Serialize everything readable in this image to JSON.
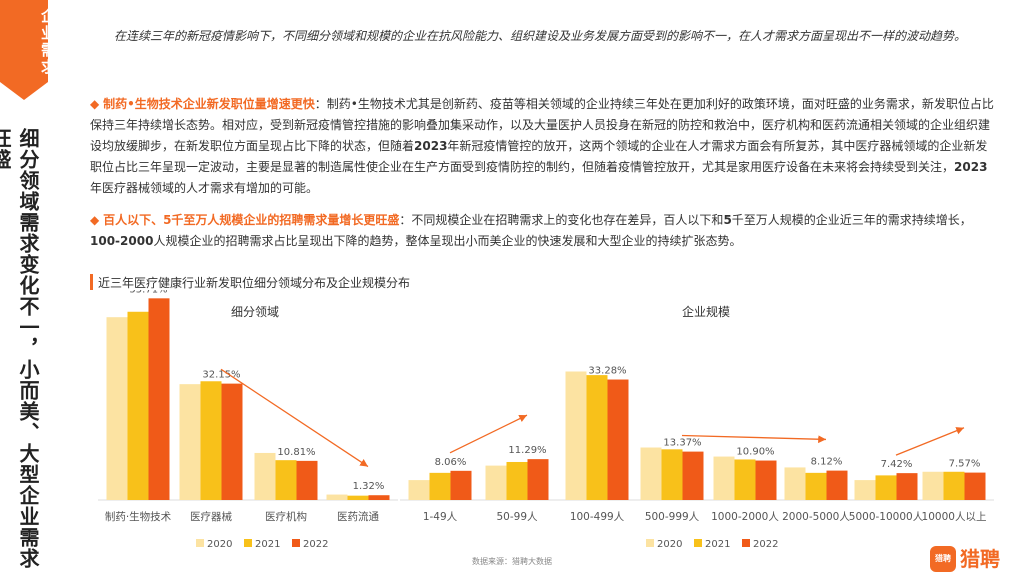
{
  "sidebar": {
    "tag": "企业需求",
    "title": "细分领域需求变化不一，小而美、大型企业需求旺盛"
  },
  "intro": "在连续三年的新冠疫情影响下，不同细分领域和规模的企业在抗风险能力、组织建设及业务发展方面受到的影响不一，在人才需求方面呈现出不一样的波动趋势。",
  "bullet1": {
    "marker": "◆",
    "heading": "制药•生物技术企业新发职位量增速更快",
    "body_a": "：制药•生物技术尤其是创新药、疫苗等相关领域的企业持续三年处在更加利好的政策环境，面对旺盛的业务需求，新发职位占比保持三年持续增长态势。相对应，受到新冠疫情管控措施的影响叠加集采动作，以及大量医护人员投身在新冠的防控和救治中，医疗机构和医药流通相关领域的企业组织建设均放缓脚步，在新发职位方面呈现占比下降的状态，但随着",
    "bold_a": "2023",
    "body_b": "年新冠疫情管控的放开，这两个领域的企业在人才需求方面会有所复苏，其中医疗器械领域的企业新发职位占比三年呈现一定波动，主要是显著的制造属性使企业在生产方面受到疫情防控的制约，但随着疫情管控放开，尤其是家用医疗设备在未来将会持续受到关注，",
    "bold_b": "2023",
    "body_c": "年医疗器械领域的人才需求有增加的可能。"
  },
  "bullet2": {
    "marker": "◆",
    "heading": "百人以下、5千至万人规模企业的招聘需求量增长更旺盛",
    "body_a": "：不同规模企业在招聘需求上的变化也存在差异，百人以下和",
    "bold_a": "5",
    "body_b": "千至万人规模的企业近三年的需求持续增长，",
    "bold_b": "100-2000",
    "body_c": "人规模企业的招聘需求占比呈现出下降的趋势，整体呈现出小而美企业的快速发展和大型企业的持续扩张态势。"
  },
  "chart_title": "近三年医疗健康行业新发职位细分领域分布及企业规模分布",
  "source": "数据来源：猎聘大数据",
  "logo": {
    "icon_text": "猎聘",
    "text": "猎聘"
  },
  "colors": {
    "accent": "#f26a24",
    "s2020": "#fce3a2",
    "s2021": "#f8c11a",
    "s2022": "#f05a18"
  },
  "chart_data": [
    {
      "type": "bar",
      "title": "细分领域",
      "categories": [
        "制药·生物技术",
        "医疗器械",
        "医疗机构",
        "医药流通"
      ],
      "series": [
        {
          "name": "2020",
          "values": [
            50.5,
            32.0,
            13.0,
            1.5
          ]
        },
        {
          "name": "2021",
          "values": [
            52.0,
            32.8,
            11.0,
            1.2
          ]
        },
        {
          "name": "2022",
          "values": [
            55.71,
            32.15,
            10.81,
            1.32
          ]
        }
      ],
      "data_labels": [
        "55.71%",
        "32.15%",
        "10.81%",
        "1.32%"
      ]
    },
    {
      "type": "bar",
      "title": "企业规模",
      "categories": [
        "1-49人",
        "50-99人",
        "100-499人",
        "500-999人",
        "1000-2000人",
        "2000-5000人",
        "5000-10000人",
        "10000人以上"
      ],
      "series": [
        {
          "name": "2020",
          "values": [
            5.5,
            9.5,
            35.5,
            14.5,
            12.0,
            9.0,
            5.5,
            7.8
          ]
        },
        {
          "name": "2021",
          "values": [
            7.5,
            10.5,
            34.5,
            14.0,
            11.2,
            7.5,
            6.8,
            7.8
          ]
        },
        {
          "name": "2022",
          "values": [
            8.06,
            11.29,
            33.28,
            13.37,
            10.9,
            8.12,
            7.42,
            7.57
          ]
        }
      ],
      "data_labels": [
        "8.06%",
        "11.29%",
        "33.28%",
        "13.37%",
        "10.90%",
        "8.12%",
        "7.42%",
        "7.57%"
      ]
    }
  ]
}
